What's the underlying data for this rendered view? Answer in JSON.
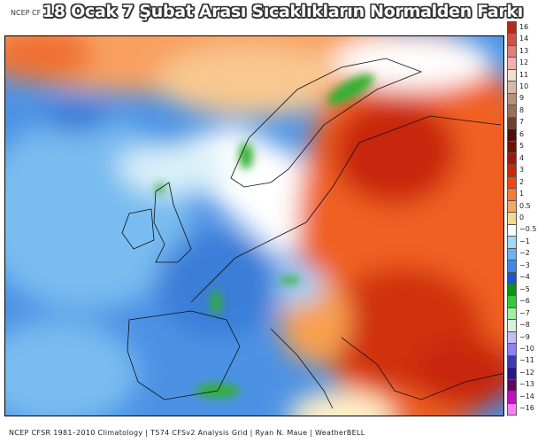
{
  "title": "18 Ocak 7 Şubat Arası Sıcaklıkların Normalden Farkı",
  "subtitle": "NCEP CF",
  "footer": "NCEP CFSR 1981–2010 Climatology | T574 CFSv2 Analysis Grid | Ryan N. Maue | WeatherBELL",
  "legend": {
    "labels": [
      "16",
      "14",
      "13",
      "12",
      "11",
      "10",
      "9",
      "8",
      "7",
      "6",
      "5",
      "4",
      "3",
      "2",
      "1",
      "0.5",
      "0",
      "−0.5",
      "−1",
      "−2",
      "−3",
      "−4",
      "−5",
      "−6",
      "−7",
      "−8",
      "−9",
      "−10",
      "−11",
      "−12",
      "−13",
      "−14",
      "−16"
    ],
    "colors": [
      "#b82818",
      "#d05048",
      "#e08078",
      "#f0b0b0",
      "#f0e0d0",
      "#d8b8a8",
      "#b89078",
      "#987058",
      "#704030",
      "#501008",
      "#701008",
      "#a01808",
      "#c82808",
      "#f04810",
      "#f87838",
      "#f8a860",
      "#f8d890",
      "#ffffff",
      "#a0d8f8",
      "#70b0f0",
      "#4088e8",
      "#1858c8",
      "#109018",
      "#38c838",
      "#a0f0a0",
      "#d8f0d8",
      "#c0c0f8",
      "#9080f0",
      "#4038b0",
      "#281880",
      "#600860",
      "#c010c0",
      "#f880f0"
    ]
  }
}
